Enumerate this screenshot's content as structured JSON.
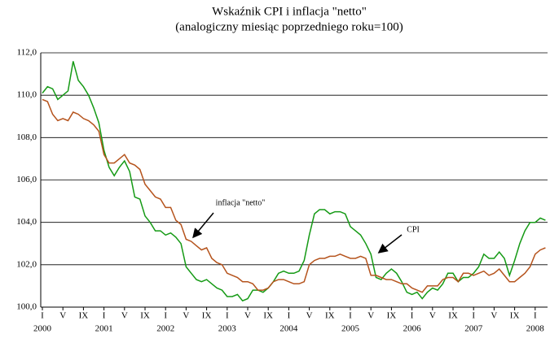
{
  "chart_data": {
    "type": "line",
    "title": "Wskaźnik CPI i inflacja \"netto\"",
    "subtitle": "(analogiczny miesiąc poprzedniego roku=100)",
    "categories": [
      "I",
      null,
      null,
      null,
      "V",
      null,
      null,
      null,
      "IX",
      null,
      null,
      null,
      "I",
      null,
      null,
      null,
      "V",
      null,
      null,
      null,
      "IX",
      null,
      null,
      null,
      "I",
      null,
      null,
      null,
      "V",
      null,
      null,
      null,
      "IX",
      null,
      null,
      null,
      "I",
      null,
      null,
      null,
      "V",
      null,
      null,
      null,
      "IX",
      null,
      null,
      null,
      "I",
      null,
      null,
      null,
      "V",
      null,
      null,
      null,
      "IX",
      null,
      null,
      null,
      "I",
      null,
      null,
      null,
      "V",
      null,
      null,
      null,
      "IX",
      null,
      null,
      null,
      "I",
      null,
      null,
      null,
      "V",
      null,
      null,
      null,
      "IX",
      null,
      null,
      null,
      "I",
      null,
      null,
      null,
      "V",
      null,
      null,
      null,
      "IX",
      null,
      null,
      null,
      "I",
      null,
      null
    ],
    "year_labels": [
      "2000",
      "2001",
      "2002",
      "2003",
      "2004",
      "2005",
      "2006",
      "2007",
      "2008"
    ],
    "series": [
      {
        "name": "CPI",
        "color": "#159a15",
        "values": [
          110.1,
          110.4,
          110.3,
          109.8,
          110.0,
          110.2,
          111.6,
          110.7,
          110.4,
          110.0,
          109.4,
          108.7,
          107.4,
          106.6,
          106.2,
          106.6,
          106.9,
          106.4,
          105.2,
          105.1,
          104.3,
          104.0,
          103.6,
          103.6,
          103.4,
          103.5,
          103.3,
          103.0,
          101.9,
          101.6,
          101.3,
          101.2,
          101.3,
          101.1,
          100.9,
          100.8,
          100.5,
          100.5,
          100.6,
          100.3,
          100.4,
          100.8,
          100.8,
          100.7,
          100.9,
          101.2,
          101.6,
          101.7,
          101.6,
          101.6,
          101.7,
          102.2,
          103.4,
          104.4,
          104.6,
          104.6,
          104.4,
          104.5,
          104.5,
          104.4,
          103.8,
          103.6,
          103.4,
          103.0,
          102.5,
          101.4,
          101.3,
          101.6,
          101.8,
          101.6,
          101.2,
          100.7,
          100.6,
          100.7,
          100.4,
          100.7,
          100.9,
          100.8,
          101.1,
          101.6,
          101.6,
          101.2,
          101.4,
          101.4,
          101.6,
          101.9,
          102.5,
          102.3,
          102.3,
          102.6,
          102.3,
          101.5,
          102.2,
          103.0,
          103.6,
          104.0,
          104.0,
          104.2,
          104.1
        ]
      },
      {
        "name": "inflacja \"netto\"",
        "color": "#b5531c",
        "values": [
          109.8,
          109.7,
          109.1,
          108.8,
          108.9,
          108.8,
          109.2,
          109.1,
          108.9,
          108.8,
          108.6,
          108.3,
          107.2,
          106.8,
          106.8,
          107.0,
          107.2,
          106.8,
          106.7,
          106.5,
          105.8,
          105.5,
          105.2,
          105.1,
          104.7,
          104.7,
          104.1,
          103.9,
          103.2,
          103.1,
          102.9,
          102.7,
          102.8,
          102.3,
          102.1,
          102.0,
          101.6,
          101.5,
          101.4,
          101.2,
          101.2,
          101.1,
          100.8,
          100.8,
          100.9,
          101.2,
          101.3,
          101.3,
          101.2,
          101.1,
          101.1,
          101.2,
          102.0,
          102.2,
          102.3,
          102.3,
          102.4,
          102.4,
          102.5,
          102.4,
          102.3,
          102.3,
          102.4,
          102.3,
          101.5,
          101.5,
          101.4,
          101.3,
          101.3,
          101.2,
          101.1,
          101.1,
          100.9,
          100.8,
          100.7,
          101.0,
          101.0,
          101.0,
          101.3,
          101.4,
          101.4,
          101.2,
          101.6,
          101.6,
          101.5,
          101.6,
          101.7,
          101.5,
          101.6,
          101.8,
          101.5,
          101.2,
          101.2,
          101.4,
          101.6,
          101.9,
          102.5,
          102.7,
          102.8
        ]
      }
    ],
    "ylim": [
      100,
      112
    ],
    "yticks": [
      {
        "value": 100,
        "label": "100,0"
      },
      {
        "value": 102,
        "label": "102,0"
      },
      {
        "value": 104,
        "label": "104,0"
      },
      {
        "value": 106,
        "label": "106,0"
      },
      {
        "value": 108,
        "label": "108,0"
      },
      {
        "value": 110,
        "label": "110,0"
      },
      {
        "value": 112,
        "label": "112,0"
      }
    ],
    "grid": true,
    "annotations": [
      {
        "text": "inflacja \"netto\""
      },
      {
        "text": "CPI"
      }
    ]
  }
}
